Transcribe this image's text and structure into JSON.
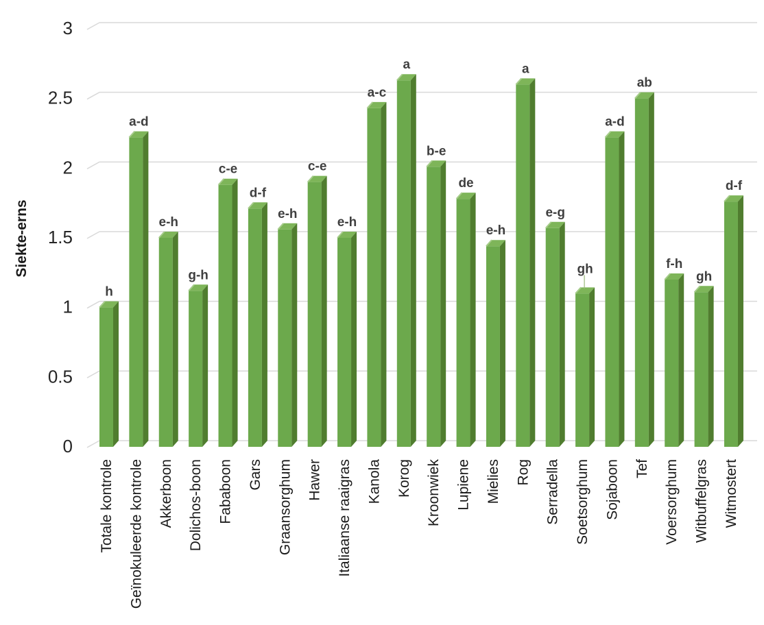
{
  "chart_data": {
    "type": "bar",
    "style": "3d-clustered-column",
    "title": "",
    "xlabel": "",
    "ylabel": "Siekte-erns",
    "ylim": [
      0,
      3
    ],
    "ytick_step": 0.5,
    "yticks": [
      "0",
      "0.5",
      "1",
      "1.5",
      "2",
      "2.5",
      "3"
    ],
    "grid": true,
    "legend": false,
    "colors": {
      "bar_front": "#6CA94C",
      "bar_side": "#507D2F",
      "bar_top": "#7EB559",
      "bar_top_highlight": "#A6CC8B",
      "gridline": "#D9D9D9",
      "axis_text": "#262626",
      "category_text": "#1a1a1a",
      "significance_text": "#3F3F3F",
      "leader_line": "#9AB87A",
      "background": "#FFFFFF"
    },
    "categories": [
      "Totale kontrole",
      "Geïnokuleerde kontrole",
      "Akkerboon",
      "Dolichos-boon",
      "Fababoon",
      "Gars",
      "Graansorghum",
      "Hawer",
      "Italiaanse raaigras",
      "Kanola",
      "Korog",
      "Kroonwiek",
      "Lupiene",
      "Mielies",
      "Rog",
      "Serradella",
      "Soetsorghum",
      "Sojaboon",
      "Tef",
      "Voersorghum",
      "Witbuffelgras",
      "Witmostert"
    ],
    "values": [
      1.0,
      2.22,
      1.5,
      1.12,
      1.88,
      1.71,
      1.56,
      1.9,
      1.5,
      2.43,
      2.63,
      2.01,
      1.78,
      1.44,
      2.6,
      1.57,
      1.1,
      2.22,
      2.5,
      1.2,
      1.11,
      1.76
    ],
    "significance_labels": [
      "h",
      "a-d",
      "e-h",
      "g-h",
      "c-e",
      "d-f",
      "e-h",
      "c-e",
      "e-h",
      "a-c",
      "a",
      "b-e",
      "de",
      "e-h",
      "a",
      "e-g",
      "gh",
      "a-d",
      "ab",
      "f-h",
      "gh",
      "d-f"
    ],
    "leader_line_category": "Soetsorghum"
  }
}
